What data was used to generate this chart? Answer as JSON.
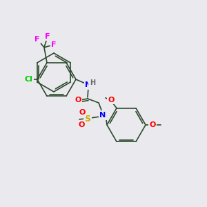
{
  "background_color": "#eaeaee",
  "bond_color": "#2d4a2d",
  "atom_colors": {
    "F": "#ff00ff",
    "Cl": "#00cc00",
    "N": "#0000ff",
    "O": "#ff0000",
    "S": "#ccaa00",
    "H": "#666666",
    "C": "#2d4a2d"
  },
  "font_size": 7.5,
  "line_width": 1.2
}
